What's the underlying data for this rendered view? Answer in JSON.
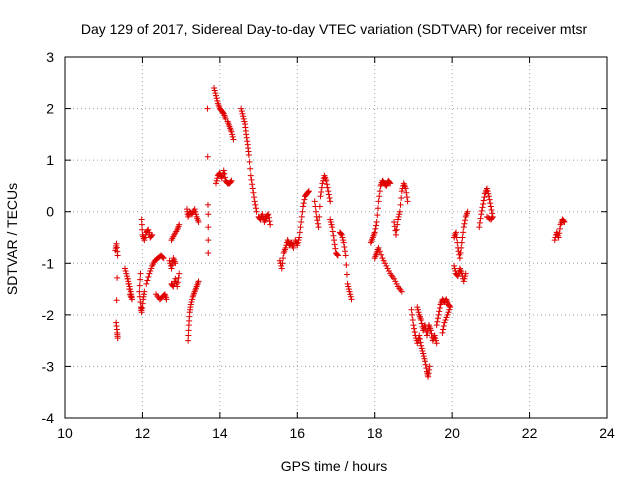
{
  "chart_data": {
    "type": "scatter",
    "title": "Day 129 of 2017, Sidereal Day-to-day VTEC variation (SDTVAR) for receiver mtsr",
    "xlabel": "GPS time / hours",
    "ylabel": "SDTVAR / TECUs",
    "xlim": [
      10,
      24
    ],
    "ylim": [
      -4,
      3
    ],
    "xticks": [
      "10",
      "12",
      "14",
      "16",
      "18",
      "20",
      "22",
      "24"
    ],
    "yticks": [
      "-4",
      "-3",
      "-2",
      "-1",
      "0",
      "1",
      "2",
      "3"
    ],
    "grid": true,
    "marker": "+",
    "color": "#e00000",
    "segments": [
      [
        [
          11.3,
          -0.75
        ],
        [
          11.33,
          -0.62
        ],
        [
          11.36,
          -0.85
        ],
        [
          11.32,
          -2.15
        ],
        [
          11.35,
          -2.35
        ],
        [
          11.36,
          -2.45
        ]
      ],
      [
        [
          11.55,
          -1.1
        ],
        [
          11.6,
          -1.25
        ],
        [
          11.65,
          -1.4
        ],
        [
          11.7,
          -1.55
        ],
        [
          11.73,
          -1.7
        ],
        [
          11.68,
          -1.6
        ],
        [
          11.62,
          -1.3
        ]
      ],
      [
        [
          11.95,
          -1.2
        ],
        [
          11.92,
          -1.55
        ],
        [
          11.96,
          -1.85
        ],
        [
          11.98,
          -1.95
        ],
        [
          12.02,
          -1.7
        ],
        [
          12.05,
          -1.55
        ]
      ],
      [
        [
          11.98,
          -0.15
        ],
        [
          12.0,
          -0.45
        ],
        [
          12.05,
          -0.55
        ],
        [
          12.1,
          -0.4
        ],
        [
          12.15,
          -0.35
        ],
        [
          12.2,
          -0.5
        ],
        [
          12.25,
          -0.45
        ]
      ],
      [
        [
          12.1,
          -1.4
        ],
        [
          12.18,
          -1.2
        ],
        [
          12.25,
          -1.05
        ],
        [
          12.32,
          -0.95
        ],
        [
          12.4,
          -0.9
        ],
        [
          12.48,
          -0.85
        ],
        [
          12.55,
          -0.9
        ]
      ],
      [
        [
          12.35,
          -1.6
        ],
        [
          12.45,
          -1.7
        ],
        [
          12.52,
          -1.65
        ],
        [
          12.58,
          -1.6
        ],
        [
          12.62,
          -1.7
        ]
      ],
      [
        [
          12.7,
          -0.95
        ],
        [
          12.75,
          -1.1
        ],
        [
          12.8,
          -0.9
        ],
        [
          12.85,
          -1.0
        ]
      ],
      [
        [
          12.75,
          -1.4
        ],
        [
          12.8,
          -1.45
        ],
        [
          12.85,
          -1.3
        ],
        [
          12.9,
          -1.45
        ],
        [
          12.95,
          -1.2
        ]
      ],
      [
        [
          12.75,
          -0.55
        ],
        [
          12.82,
          -0.45
        ],
        [
          12.9,
          -0.35
        ],
        [
          12.95,
          -0.25
        ]
      ],
      [
        [
          13.18,
          -2.5
        ],
        [
          13.2,
          -2.2
        ],
        [
          13.22,
          -1.95
        ],
        [
          13.25,
          -1.8
        ],
        [
          13.3,
          -1.65
        ],
        [
          13.35,
          -1.55
        ],
        [
          13.4,
          -1.45
        ],
        [
          13.45,
          -1.35
        ]
      ],
      [
        [
          13.15,
          0.05
        ],
        [
          13.18,
          -0.1
        ],
        [
          13.22,
          0.0
        ],
        [
          13.28,
          -0.05
        ],
        [
          13.35,
          0.05
        ],
        [
          13.4,
          -0.1
        ],
        [
          13.45,
          -0.2
        ]
      ],
      [
        [
          13.7,
          -0.05
        ],
        [
          13.7,
          -0.8
        ],
        [
          13.68,
          2.0
        ]
      ],
      [
        [
          13.85,
          2.4
        ],
        [
          13.9,
          2.25
        ],
        [
          13.95,
          2.1
        ],
        [
          14.0,
          2.0
        ],
        [
          14.05,
          1.95
        ],
        [
          14.1,
          1.9
        ],
        [
          14.15,
          1.8
        ]
      ],
      [
        [
          13.9,
          0.55
        ],
        [
          13.95,
          0.7
        ],
        [
          14.0,
          0.75
        ],
        [
          14.05,
          0.65
        ],
        [
          14.1,
          0.8
        ],
        [
          14.15,
          0.6
        ],
        [
          14.2,
          0.55
        ],
        [
          14.25,
          0.55
        ],
        [
          14.3,
          0.6
        ]
      ],
      [
        [
          14.2,
          1.75
        ],
        [
          14.25,
          1.65
        ],
        [
          14.3,
          1.55
        ],
        [
          14.35,
          1.4
        ]
      ],
      [
        [
          14.55,
          2.0
        ],
        [
          14.6,
          1.85
        ],
        [
          14.65,
          1.7
        ],
        [
          14.68,
          1.5
        ],
        [
          14.72,
          1.3
        ],
        [
          14.75,
          1.1
        ],
        [
          14.8,
          0.7
        ],
        [
          14.85,
          0.45
        ],
        [
          14.9,
          0.2
        ],
        [
          14.95,
          0.0
        ]
      ],
      [
        [
          15.0,
          -0.1
        ],
        [
          15.05,
          -0.15
        ],
        [
          15.1,
          -0.05
        ],
        [
          15.15,
          -0.2
        ],
        [
          15.2,
          -0.1
        ],
        [
          15.25,
          -0.05
        ],
        [
          15.3,
          -0.25
        ]
      ],
      [
        [
          15.55,
          -0.95
        ],
        [
          15.6,
          -1.1
        ],
        [
          15.65,
          -0.8
        ],
        [
          15.7,
          -0.7
        ],
        [
          15.75,
          -0.55
        ],
        [
          15.8,
          -0.65
        ],
        [
          15.85,
          -0.6
        ],
        [
          15.9,
          -0.7
        ]
      ],
      [
        [
          15.95,
          -0.55
        ],
        [
          16.0,
          -0.65
        ],
        [
          16.05,
          -0.5
        ],
        [
          16.1,
          -0.2
        ],
        [
          16.15,
          0.1
        ],
        [
          16.2,
          0.3
        ],
        [
          16.25,
          0.35
        ],
        [
          16.3,
          0.4
        ]
      ],
      [
        [
          16.45,
          0.2
        ],
        [
          16.5,
          -0.1
        ],
        [
          16.55,
          -0.3
        ],
        [
          16.6,
          0.3
        ],
        [
          16.65,
          0.55
        ],
        [
          16.7,
          0.7
        ],
        [
          16.75,
          0.6
        ],
        [
          16.8,
          0.4
        ],
        [
          16.85,
          0.2
        ]
      ],
      [
        [
          16.85,
          -0.15
        ],
        [
          16.9,
          -0.3
        ],
        [
          16.95,
          -0.55
        ],
        [
          17.0,
          -0.8
        ],
        [
          17.05,
          -0.85
        ]
      ],
      [
        [
          17.1,
          -0.4
        ],
        [
          17.15,
          -0.45
        ],
        [
          17.2,
          -0.6
        ],
        [
          17.25,
          -0.85
        ],
        [
          17.3,
          -1.4
        ],
        [
          17.35,
          -1.55
        ],
        [
          17.4,
          -1.7
        ]
      ],
      [
        [
          17.9,
          -0.6
        ],
        [
          17.95,
          -0.5
        ],
        [
          18.0,
          -0.4
        ],
        [
          18.05,
          -0.2
        ],
        [
          18.1,
          0.2
        ],
        [
          18.15,
          0.5
        ],
        [
          18.2,
          0.6
        ],
        [
          18.25,
          0.55
        ],
        [
          18.3,
          0.5
        ],
        [
          18.35,
          0.6
        ],
        [
          18.4,
          0.55
        ]
      ],
      [
        [
          18.0,
          -0.9
        ],
        [
          18.05,
          -0.8
        ],
        [
          18.1,
          -0.7
        ],
        [
          18.2,
          -0.9
        ],
        [
          18.3,
          -1.05
        ],
        [
          18.4,
          -1.2
        ],
        [
          18.5,
          -1.3
        ],
        [
          18.6,
          -1.45
        ],
        [
          18.7,
          -1.55
        ]
      ],
      [
        [
          18.5,
          -0.2
        ],
        [
          18.55,
          -0.45
        ],
        [
          18.6,
          -0.15
        ],
        [
          18.65,
          0.0
        ],
        [
          18.7,
          0.4
        ],
        [
          18.75,
          0.55
        ],
        [
          18.8,
          0.45
        ],
        [
          18.85,
          0.2
        ]
      ],
      [
        [
          18.95,
          -1.9
        ],
        [
          19.0,
          -2.2
        ],
        [
          19.05,
          -2.4
        ],
        [
          19.1,
          -2.55
        ],
        [
          19.15,
          -2.4
        ],
        [
          19.2,
          -2.6
        ],
        [
          19.25,
          -2.75
        ],
        [
          19.3,
          -2.9
        ],
        [
          19.35,
          -3.1
        ],
        [
          19.38,
          -3.2
        ],
        [
          19.42,
          -3.0
        ]
      ],
      [
        [
          19.1,
          -1.85
        ],
        [
          19.15,
          -2.0
        ],
        [
          19.2,
          -2.1
        ],
        [
          19.25,
          -2.3
        ],
        [
          19.3,
          -2.2
        ],
        [
          19.35,
          -2.4
        ],
        [
          19.4,
          -2.2
        ],
        [
          19.45,
          -2.3
        ],
        [
          19.5,
          -2.5
        ],
        [
          19.55,
          -2.4
        ],
        [
          19.6,
          -2.55
        ]
      ],
      [
        [
          19.6,
          -2.2
        ],
        [
          19.65,
          -2.0
        ],
        [
          19.7,
          -1.8
        ],
        [
          19.75,
          -1.7
        ],
        [
          19.8,
          -1.75
        ],
        [
          19.85,
          -1.7
        ],
        [
          19.9,
          -1.8
        ],
        [
          19.95,
          -1.85
        ],
        [
          19.88,
          -2.0
        ],
        [
          19.8,
          -2.15
        ],
        [
          19.75,
          -2.35
        ]
      ],
      [
        [
          20.05,
          -0.5
        ],
        [
          20.1,
          -0.4
        ],
        [
          20.15,
          -0.7
        ],
        [
          20.2,
          -0.9
        ],
        [
          20.25,
          -0.6
        ],
        [
          20.3,
          -0.3
        ],
        [
          20.35,
          -0.1
        ],
        [
          20.4,
          0.0
        ]
      ],
      [
        [
          20.05,
          -1.05
        ],
        [
          20.1,
          -1.2
        ],
        [
          20.15,
          -1.25
        ],
        [
          20.2,
          -1.1
        ],
        [
          20.25,
          -1.2
        ],
        [
          20.3,
          -1.35
        ],
        [
          20.35,
          -1.2
        ]
      ],
      [
        [
          20.7,
          -0.3
        ],
        [
          20.75,
          -0.05
        ],
        [
          20.8,
          0.15
        ],
        [
          20.85,
          0.35
        ],
        [
          20.9,
          0.45
        ],
        [
          20.95,
          0.3
        ],
        [
          21.0,
          0.1
        ],
        [
          21.05,
          -0.1
        ],
        [
          21.0,
          -0.15
        ],
        [
          20.9,
          -0.1
        ]
      ],
      [
        [
          22.65,
          -0.55
        ],
        [
          22.7,
          -0.4
        ],
        [
          22.75,
          -0.5
        ],
        [
          22.8,
          -0.25
        ],
        [
          22.85,
          -0.15
        ],
        [
          22.9,
          -0.2
        ]
      ]
    ]
  }
}
